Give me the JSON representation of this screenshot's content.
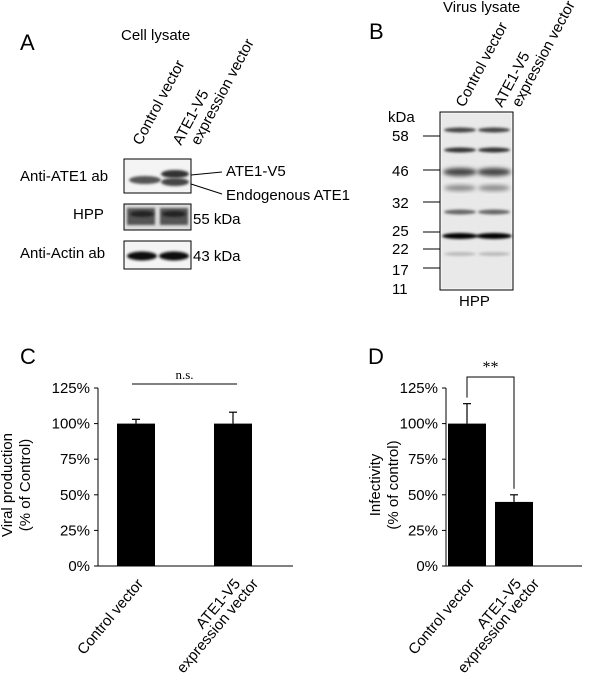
{
  "panel_a": {
    "letter": "A",
    "title": "Cell lysate",
    "lanes": [
      "Control vector",
      "ATE1-V5",
      "expression vector"
    ],
    "rows": [
      "Anti-ATE1 ab",
      "HPP",
      "Anti-Actin ab"
    ],
    "band_labels": [
      "ATE1-V5",
      "Endogenous ATE1",
      "55 kDa",
      "43 kDa"
    ]
  },
  "panel_b": {
    "letter": "B",
    "title": "Virus lysate",
    "lanes": [
      "Control vector",
      "ATE1-V5",
      "expression vector"
    ],
    "kda_label": "kDa",
    "markers": [
      "58",
      "46",
      "32",
      "25",
      "22",
      "17",
      "11"
    ],
    "blot_label": "HPP"
  },
  "chart_data": [
    {
      "panel": "C",
      "type": "bar",
      "categories": [
        "Control vector",
        "ATE1-V5 expression vector"
      ],
      "category_lines": [
        [
          "Control vector"
        ],
        [
          "ATE1-V5",
          "expression vector"
        ]
      ],
      "values": [
        100,
        100
      ],
      "errors": [
        3,
        8
      ],
      "ylabel_lines": [
        "Viral production",
        "(% of Control)"
      ],
      "ylim": [
        0,
        125
      ],
      "yticks": [
        "0%",
        "25%",
        "50%",
        "75%",
        "100%",
        "125%"
      ],
      "significance": "n.s."
    },
    {
      "panel": "D",
      "type": "bar",
      "categories": [
        "Control vector",
        "ATE1-V5 expression vector"
      ],
      "category_lines": [
        [
          "Control vector"
        ],
        [
          "ATE1-V5",
          "expression vector"
        ]
      ],
      "values": [
        100,
        45
      ],
      "errors": [
        14,
        5
      ],
      "ylabel_lines": [
        "Infectivity",
        "(% of control)"
      ],
      "ylim": [
        0,
        125
      ],
      "yticks": [
        "0%",
        "25%",
        "50%",
        "75%",
        "100%",
        "125%"
      ],
      "significance": "**"
    }
  ]
}
